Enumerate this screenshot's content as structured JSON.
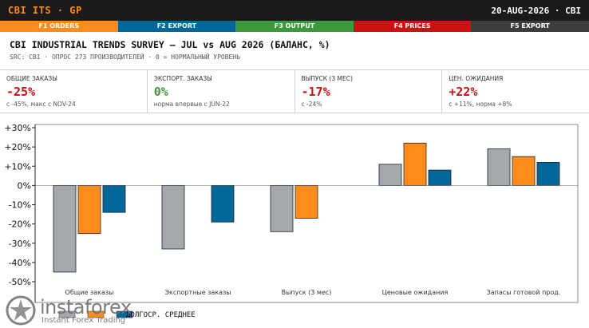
{
  "header": {
    "brand": "CBI ITS · GP",
    "date": "20-AUG-2026 · CBI"
  },
  "function_keys": [
    {
      "label": "F1 ORDERS",
      "color": "#ff8c1a"
    },
    {
      "label": "F2 EXPORT",
      "color": "#00679a"
    },
    {
      "label": "F3 OUTPUT",
      "color": "#3c9a3c"
    },
    {
      "label": "F4 PRICES",
      "color": "#cc1111"
    },
    {
      "label": "F5 EXPORT",
      "color": "#3d3d3d"
    }
  ],
  "report": {
    "title": "CBI INDUSTRIAL TRENDS SURVEY — JUL vs AUG 2026 (БАЛАНС, %)",
    "subtitle": "SRC: CBI · ОПРОС 273 ПРОИЗВОДИТЕЛЕЙ · 0 = НОРМАЛЬНЫЙ УРОВЕНЬ"
  },
  "kpis": [
    {
      "label": "ОБЩИЕ ЗАКАЗЫ",
      "value": "-25%",
      "note": "с -45%, макс с NOV-24",
      "color": "#cc1111"
    },
    {
      "label": "ЭКСПОРТ. ЗАКАЗЫ",
      "value": "0%",
      "note": "норма впервые с JUN-22",
      "color": "#3c9a3c"
    },
    {
      "label": "ВЫПУСК (3 МЕС)",
      "value": "-17%",
      "note": "с -24%",
      "color": "#cc1111"
    },
    {
      "label": "ЦЕН. ОЖИДАНИЯ",
      "value": "+22%",
      "note": "с +11%, норма +8%",
      "color": "#cc1111"
    }
  ],
  "legend_text": "ДОЛГОСР. СРЕДНЕЕ",
  "watermark": {
    "name": "instaforex",
    "tagline": "Instant Forex Trading"
  },
  "chart_data": {
    "type": "bar",
    "categories": [
      "Общие заказы",
      "Экспортные заказы",
      "Выпуск (3 мес)",
      "Ценовые ожидания",
      "Запасы готовой прод."
    ],
    "series": [
      {
        "values": [
          -45,
          -33,
          -24,
          11,
          19
        ],
        "color": "#a5a8ad"
      },
      {
        "values": [
          -25,
          0,
          -17,
          22,
          15
        ],
        "color": "#ff8c1a"
      },
      {
        "name": "ДОЛГОСР. СРЕДНЕЕ",
        "values": [
          -14,
          -19,
          null,
          8,
          12
        ],
        "color": "#00679a"
      }
    ],
    "yticks": [
      "+30%",
      "+20%",
      "+10%",
      "0%",
      "-10%",
      "-20%",
      "-30%",
      "-40%",
      "-50%"
    ],
    "ylim": [
      -50,
      30
    ],
    "grid": false
  }
}
